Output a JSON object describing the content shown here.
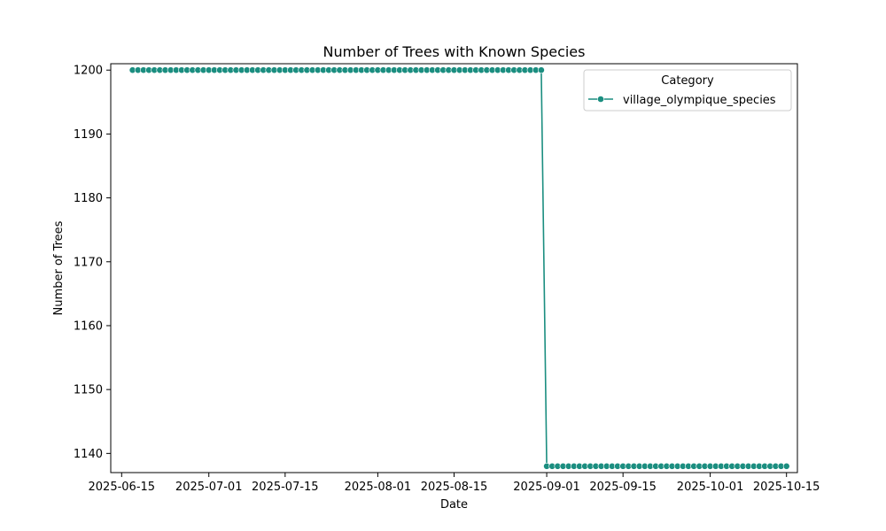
{
  "chart_data": {
    "type": "line",
    "title": "Number of Trees with Known Species",
    "xlabel": "Date",
    "ylabel": "Number of Trees",
    "x_range": [
      "2025-06-13",
      "2025-10-17"
    ],
    "ylim": [
      1137,
      1201
    ],
    "x_ticks": [
      "2025-06-15",
      "2025-07-01",
      "2025-07-15",
      "2025-08-01",
      "2025-08-15",
      "2025-09-01",
      "2025-09-15",
      "2025-10-01",
      "2025-10-15"
    ],
    "y_ticks": [
      1140,
      1150,
      1160,
      1170,
      1180,
      1190,
      1200
    ],
    "grid": false,
    "legend": {
      "title": "Category",
      "placement": "top-right"
    },
    "series": [
      {
        "name": "village_olympique_species",
        "color": "#1b8e80",
        "marker": "circle",
        "segments": [
          {
            "start": "2025-06-17",
            "end": "2025-08-31",
            "step_days": 1,
            "value": 1200
          },
          {
            "start": "2025-09-01",
            "end": "2025-10-15",
            "step_days": 1,
            "value": 1138
          }
        ]
      }
    ]
  }
}
